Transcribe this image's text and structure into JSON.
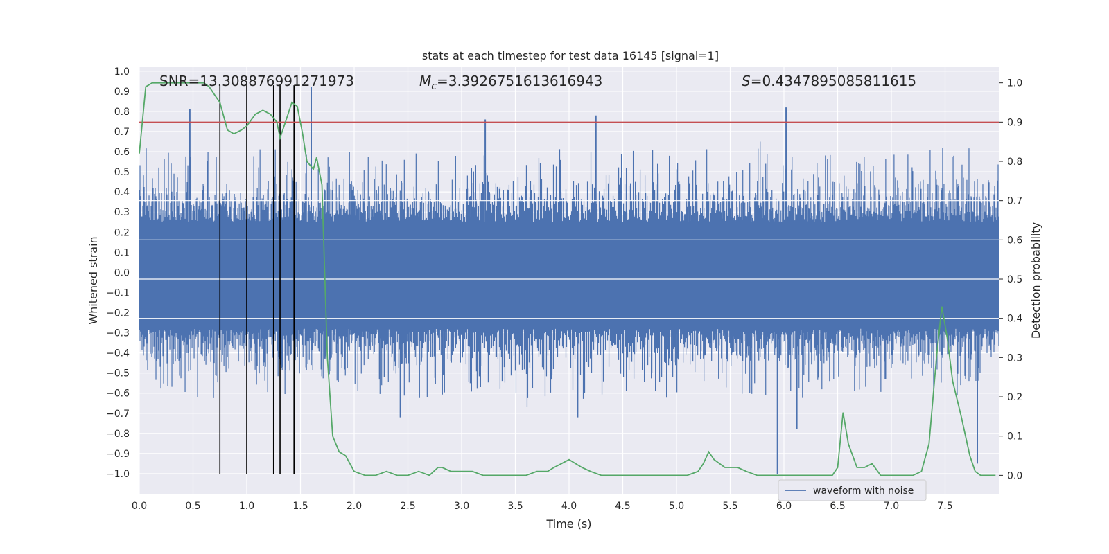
{
  "chart_data": {
    "type": "line",
    "title": "stats at each timestep for test data 16145 [signal=1]",
    "xlabel": "Time (s)",
    "ylabel_left": "Whitened strain",
    "ylabel_right": "Detection probability",
    "xlim": [
      0,
      8.0
    ],
    "ylim_left": [
      -1.1,
      1.02
    ],
    "ylim_right": [
      -0.047,
      1.04
    ],
    "x_ticks": [
      "0.0",
      "0.5",
      "1.0",
      "1.5",
      "2.0",
      "2.5",
      "3.0",
      "3.5",
      "4.0",
      "4.5",
      "5.0",
      "5.5",
      "6.0",
      "6.5",
      "7.0",
      "7.5"
    ],
    "x_tick_values": [
      0,
      0.5,
      1,
      1.5,
      2,
      2.5,
      3,
      3.5,
      4,
      4.5,
      5,
      5.5,
      6,
      6.5,
      7,
      7.5
    ],
    "y_left_ticks": [
      "1.0",
      "0.9",
      "0.8",
      "0.7",
      "0.6",
      "0.5",
      "0.4",
      "0.3",
      "0.2",
      "0.1",
      "0.0",
      "−0.1",
      "−0.2",
      "−0.3",
      "−0.4",
      "−0.5",
      "−0.6",
      "−0.7",
      "−0.8",
      "−0.9",
      "−1.0"
    ],
    "y_left_tick_values": [
      1.0,
      0.9,
      0.8,
      0.7,
      0.6,
      0.5,
      0.4,
      0.3,
      0.2,
      0.1,
      0.0,
      -0.1,
      -0.2,
      -0.3,
      -0.4,
      -0.5,
      -0.6,
      -0.7,
      -0.8,
      -0.9,
      -1.0
    ],
    "y_right_ticks": [
      "1.0",
      "0.9",
      "0.8",
      "0.7",
      "0.6",
      "0.5",
      "0.4",
      "0.3",
      "0.2",
      "0.1",
      "0.0"
    ],
    "y_right_tick_values": [
      1.0,
      0.9,
      0.8,
      0.7,
      0.6,
      0.5,
      0.4,
      0.3,
      0.2,
      0.1,
      0.0
    ],
    "annotations": {
      "snr": "SNR=13.308876991271973",
      "mc_symbol": "M",
      "mc_sub": "c",
      "mc_value": "=3.3926751613616943",
      "s_symbol": "S",
      "s_value": "=0.4347895085811615"
    },
    "legend": {
      "label": "waveform with noise",
      "position": "lower-right"
    },
    "threshold_line": {
      "y_right": 0.9,
      "color": "#c44e52"
    },
    "event_markers_x": [
      0.75,
      1.0,
      1.25,
      1.31,
      1.44
    ],
    "event_marker_range_left": [
      -1.0,
      0.93
    ],
    "series": [
      {
        "name": "waveform with noise",
        "axis": "left",
        "color": "#4c72b0",
        "style": "dense-noise",
        "spikes": [
          {
            "x": 0.47,
            "y": 0.81
          },
          {
            "x": 1.6,
            "y": 0.92
          },
          {
            "x": 3.22,
            "y": 0.76
          },
          {
            "x": 4.25,
            "y": 0.78
          },
          {
            "x": 6.02,
            "y": 0.82
          },
          {
            "x": 5.94,
            "y": -1.0
          },
          {
            "x": 7.8,
            "y": -0.95
          },
          {
            "x": 2.43,
            "y": -0.72
          },
          {
            "x": 4.08,
            "y": -0.72
          },
          {
            "x": 6.12,
            "y": -0.78
          }
        ]
      },
      {
        "name": "detection probability",
        "axis": "right",
        "color": "#55a868",
        "x": [
          0.0,
          0.06,
          0.12,
          0.2,
          0.3,
          0.4,
          0.5,
          0.55,
          0.6,
          0.65,
          0.7,
          0.75,
          0.82,
          0.88,
          0.95,
          1.0,
          1.08,
          1.15,
          1.22,
          1.28,
          1.31,
          1.36,
          1.42,
          1.47,
          1.52,
          1.56,
          1.62,
          1.65,
          1.7,
          1.75,
          1.8,
          1.86,
          1.92,
          2.0,
          2.1,
          2.2,
          2.3,
          2.4,
          2.5,
          2.6,
          2.7,
          2.78,
          2.82,
          2.9,
          3.0,
          3.1,
          3.2,
          3.3,
          3.5,
          3.6,
          3.7,
          3.8,
          3.86,
          3.93,
          4.0,
          4.06,
          4.12,
          4.2,
          4.3,
          4.4,
          4.5,
          4.7,
          4.9,
          5.1,
          5.2,
          5.25,
          5.3,
          5.35,
          5.45,
          5.5,
          5.57,
          5.65,
          5.75,
          5.85,
          5.95,
          6.05,
          6.15,
          6.25,
          6.35,
          6.45,
          6.5,
          6.55,
          6.6,
          6.68,
          6.75,
          6.82,
          6.9,
          6.95,
          7.0,
          7.1,
          7.2,
          7.28,
          7.35,
          7.42,
          7.47,
          7.52,
          7.57,
          7.65,
          7.73,
          7.78,
          7.83,
          7.9,
          7.97
        ],
        "y": [
          0.82,
          0.99,
          1.0,
          1.0,
          1.0,
          1.0,
          1.0,
          1.0,
          1.0,
          0.99,
          0.97,
          0.95,
          0.88,
          0.87,
          0.88,
          0.89,
          0.92,
          0.93,
          0.92,
          0.9,
          0.86,
          0.9,
          0.95,
          0.94,
          0.87,
          0.8,
          0.78,
          0.81,
          0.74,
          0.3,
          0.1,
          0.06,
          0.05,
          0.01,
          0.0,
          0.0,
          0.01,
          0.0,
          0.0,
          0.01,
          0.0,
          0.02,
          0.02,
          0.01,
          0.01,
          0.01,
          0.0,
          0.0,
          0.0,
          0.0,
          0.01,
          0.01,
          0.02,
          0.03,
          0.04,
          0.03,
          0.02,
          0.01,
          0.0,
          0.0,
          0.0,
          0.0,
          0.0,
          0.0,
          0.01,
          0.03,
          0.06,
          0.04,
          0.02,
          0.02,
          0.02,
          0.01,
          0.0,
          0.0,
          0.0,
          0.0,
          0.0,
          0.0,
          0.0,
          0.0,
          0.02,
          0.16,
          0.08,
          0.02,
          0.02,
          0.03,
          0.0,
          0.0,
          0.0,
          0.0,
          0.0,
          0.01,
          0.08,
          0.3,
          0.43,
          0.35,
          0.24,
          0.15,
          0.05,
          0.01,
          0.0,
          0.0,
          0.0
        ]
      }
    ]
  }
}
